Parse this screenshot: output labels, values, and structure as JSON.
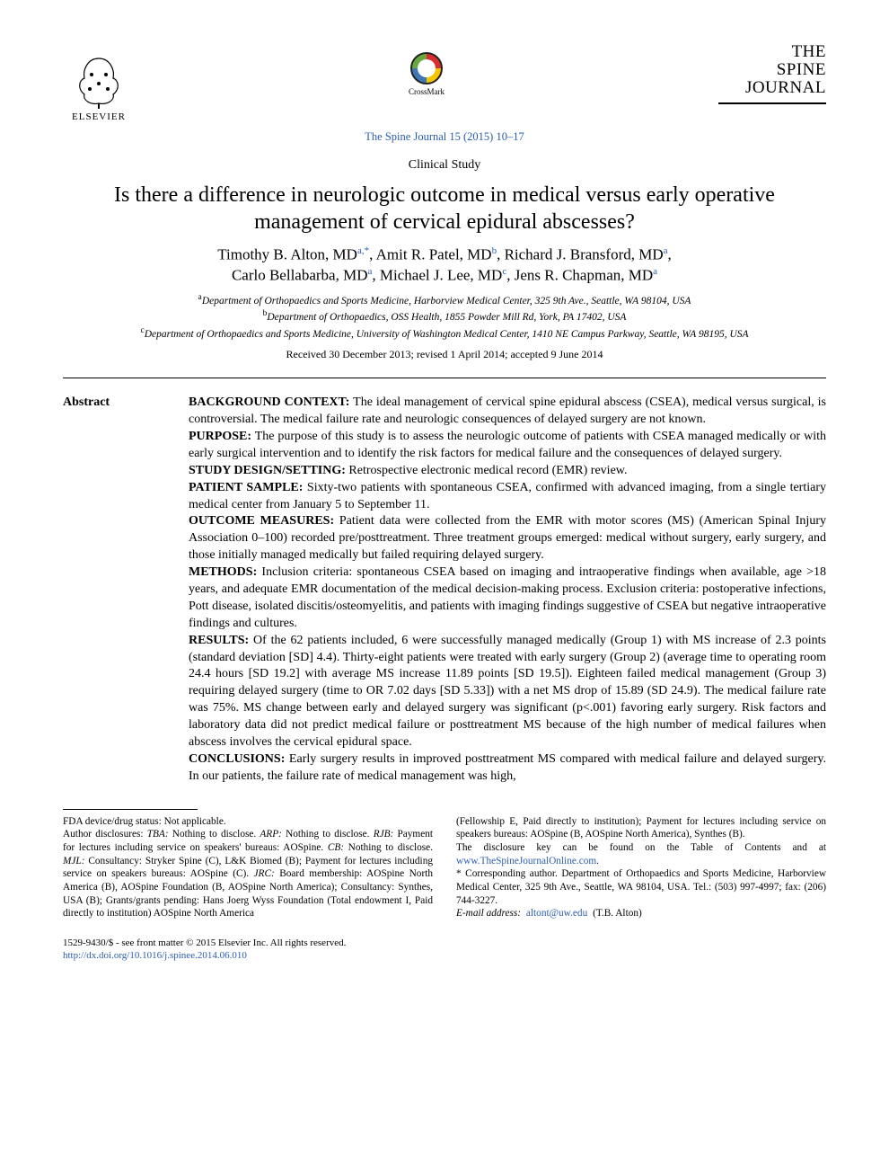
{
  "header": {
    "elsevier_label": "ELSEVIER",
    "crossmark_label": "CrossMark",
    "journal_logo_lines": [
      "THE",
      "SPINE",
      "JOURNAL"
    ],
    "journal_ref": "The Spine Journal 15 (2015) 10–17"
  },
  "article": {
    "type": "Clinical Study",
    "title": "Is there a difference in neurologic outcome in medical versus early operative management of cervical epidural abscesses?",
    "authors_html_parts": [
      {
        "name": "Timothy B. Alton, MD",
        "sup": "a,",
        "star": true
      },
      {
        "name": "Amit R. Patel, MD",
        "sup": "b"
      },
      {
        "name": "Richard J. Bransford, MD",
        "sup": "a"
      },
      {
        "name": "Carlo Bellabarba, MD",
        "sup": "a"
      },
      {
        "name": "Michael J. Lee, MD",
        "sup": "c"
      },
      {
        "name": "Jens R. Chapman, MD",
        "sup": "a"
      }
    ],
    "affiliations": [
      {
        "key": "a",
        "text": "Department of Orthopaedics and Sports Medicine, Harborview Medical Center, 325 9th Ave., Seattle, WA 98104, USA"
      },
      {
        "key": "b",
        "text": "Department of Orthopaedics, OSS Health, 1855 Powder Mill Rd, York, PA 17402, USA"
      },
      {
        "key": "c",
        "text": "Department of Orthopaedics and Sports Medicine, University of Washington Medical Center, 1410 NE Campus Parkway, Seattle, WA 98195, USA"
      }
    ],
    "dates": "Received 30 December 2013; revised 1 April 2014; accepted 9 June 2014"
  },
  "abstract": {
    "label": "Abstract",
    "sections": [
      {
        "head": "BACKGROUND CONTEXT:",
        "body": " The ideal management of cervical spine epidural abscess (CSEA), medical versus surgical, is controversial. The medical failure rate and neurologic consequences of delayed surgery are not known."
      },
      {
        "head": "PURPOSE:",
        "body": " The purpose of this study is to assess the neurologic outcome of patients with CSEA managed medically or with early surgical intervention and to identify the risk factors for medical failure and the consequences of delayed surgery."
      },
      {
        "head": "STUDY DESIGN/SETTING:",
        "body": " Retrospective electronic medical record (EMR) review."
      },
      {
        "head": "PATIENT SAMPLE:",
        "body": " Sixty-two patients with spontaneous CSEA, confirmed with advanced imaging, from a single tertiary medical center from January 5 to September 11."
      },
      {
        "head": "OUTCOME MEASURES:",
        "body": " Patient data were collected from the EMR with motor scores (MS) (American Spinal Injury Association 0–100) recorded pre/posttreatment. Three treatment groups emerged: medical without surgery, early surgery, and those initially managed medically but failed requiring delayed surgery."
      },
      {
        "head": "METHODS:",
        "body": " Inclusion criteria: spontaneous CSEA based on imaging and intraoperative findings when available, age >18 years, and adequate EMR documentation of the medical decision-making process. Exclusion criteria: postoperative infections, Pott disease, isolated discitis/osteomyelitis, and patients with imaging findings suggestive of CSEA but negative intraoperative findings and cultures."
      },
      {
        "head": "RESULTS:",
        "body": " Of the 62 patients included, 6 were successfully managed medically (Group 1) with MS increase of 2.3 points (standard deviation [SD] 4.4). Thirty-eight patients were treated with early surgery (Group 2) (average time to operating room 24.4 hours [SD 19.2] with average MS increase 11.89 points [SD 19.5]). Eighteen failed medical management (Group 3) requiring delayed surgery (time to OR 7.02 days [SD 5.33]) with a net MS drop of 15.89 (SD 24.9). The medical failure rate was 75%. MS change between early and delayed surgery was significant (p<.001) favoring early surgery. Risk factors and laboratory data did not predict medical failure or posttreatment MS because of the high number of medical failures when abscess involves the cervical epidural space."
      },
      {
        "head": "CONCLUSIONS:",
        "body": " Early surgery results in improved posttreatment MS compared with medical failure and delayed surgery. In our patients, the failure rate of medical management was high,"
      }
    ]
  },
  "footnotes": {
    "fda": "FDA device/drug status: Not applicable.",
    "disclosures_left": "Author disclosures: TBA: Nothing to disclose. ARP: Nothing to disclose. RJB: Payment for lectures including service on speakers' bureaus: AOSpine. CB: Nothing to disclose. MJL: Consultancy: Stryker Spine (C), L&K Biomed (B); Payment for lectures including service on speakers bureaus: AOSpine (C). JRC: Board membership: AOSpine North America (B), AOSpine Foundation (B, AOSpine North America); Consultancy: Synthes, USA (B); Grants/grants pending: Hans Joerg Wyss Foundation (Total endowment I, Paid directly to institution) AOSpine North America",
    "disclosures_right_1": "(Fellowship E, Paid directly to institution); Payment for lectures including service on speakers bureaus: AOSpine (B, AOSpine North America), Synthes (B).",
    "disclosure_key_1": "The disclosure key can be found on the Table of Contents and at ",
    "disclosure_key_link": "www.TheSpineJournalOnline.com",
    "disclosure_key_2": ".",
    "corresponding": "* Corresponding author. Department of Orthopaedics and Sports Medicine, Harborview Medical Center, 325 9th Ave., Seattle, WA 98104, USA. Tel.: (503) 997-4997; fax: (206) 744-3227.",
    "email_label": "E-mail address:",
    "email_value": "altont@uw.edu",
    "email_author": "(T.B. Alton)"
  },
  "bottom": {
    "issn_line": "1529-9430/$ - see front matter © 2015 Elsevier Inc. All rights reserved.",
    "doi": "http://dx.doi.org/10.1016/j.spinee.2014.06.010"
  },
  "colors": {
    "link": "#2a5db0",
    "text": "#000000",
    "background": "#ffffff"
  },
  "typography": {
    "body_family": "Times New Roman",
    "title_fontsize_pt": 18,
    "authors_fontsize_pt": 13,
    "body_fontsize_pt": 10.5,
    "footnote_fontsize_pt": 8.5
  }
}
